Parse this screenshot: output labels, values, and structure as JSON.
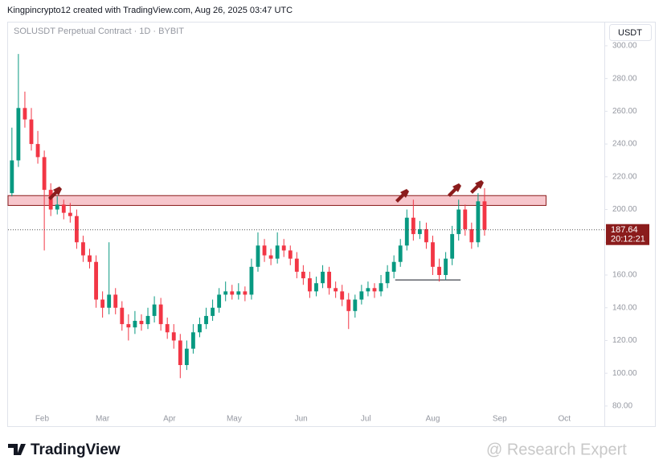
{
  "header": "Kingpincrypto12 created with TradingView.com, Aug 26, 2025 03:47 UTC",
  "chart_data": {
    "type": "candlestick",
    "title": "SOLUSDT Perpetual Contract · 1D · BYBIT",
    "currency": "USDT",
    "open": [
      210,
      230,
      262,
      255,
      240,
      232,
      212,
      200,
      203,
      198,
      196,
      180,
      172,
      168,
      145,
      140,
      148,
      140,
      130,
      128,
      132,
      130,
      135,
      142,
      130,
      125,
      120,
      105,
      115,
      125,
      130,
      135,
      140,
      148,
      150,
      148,
      150,
      148,
      165,
      178,
      172,
      170,
      178,
      175,
      170,
      162,
      158,
      150,
      155,
      162,
      152,
      150,
      145,
      138,
      145,
      150,
      152,
      150,
      155,
      162,
      168,
      178,
      195,
      185,
      188,
      180,
      165,
      160,
      170,
      185,
      200,
      188,
      180,
      205
    ],
    "high": [
      250,
      295,
      272,
      262,
      248,
      236,
      216,
      208,
      206,
      204,
      200,
      184,
      176,
      172,
      150,
      180,
      152,
      144,
      136,
      138,
      136,
      140,
      147,
      146,
      134,
      130,
      124,
      120,
      130,
      134,
      140,
      145,
      152,
      156,
      154,
      155,
      153,
      170,
      186,
      182,
      176,
      186,
      182,
      178,
      174,
      166,
      162,
      159,
      166,
      165,
      156,
      154,
      149,
      148,
      154,
      156,
      155,
      160,
      166,
      172,
      182,
      200,
      206,
      193,
      192,
      184,
      170,
      174,
      190,
      206,
      203,
      192,
      210,
      213
    ],
    "low": [
      208,
      226,
      250,
      236,
      228,
      175,
      196,
      197,
      194,
      192,
      176,
      168,
      164,
      140,
      134,
      136,
      136,
      126,
      120,
      124,
      126,
      127,
      131,
      126,
      121,
      115,
      97,
      102,
      112,
      122,
      127,
      132,
      137,
      144,
      145,
      145,
      144,
      145,
      162,
      168,
      166,
      167,
      171,
      166,
      158,
      154,
      146,
      147,
      152,
      148,
      146,
      141,
      127,
      134,
      142,
      147,
      146,
      147,
      152,
      158,
      165,
      175,
      181,
      182,
      176,
      160,
      156,
      157,
      166,
      181,
      184,
      176,
      177,
      184
    ],
    "close": [
      230,
      262,
      255,
      240,
      232,
      212,
      200,
      203,
      198,
      196,
      180,
      172,
      168,
      145,
      140,
      148,
      140,
      130,
      128,
      132,
      130,
      135,
      142,
      130,
      125,
      120,
      105,
      115,
      125,
      130,
      135,
      140,
      148,
      150,
      148,
      150,
      148,
      165,
      178,
      172,
      170,
      178,
      175,
      170,
      162,
      158,
      150,
      155,
      162,
      152,
      150,
      145,
      138,
      145,
      150,
      152,
      150,
      155,
      162,
      168,
      178,
      195,
      185,
      188,
      180,
      165,
      160,
      170,
      185,
      200,
      188,
      180,
      205,
      187.64
    ],
    "up_color": "#089981",
    "down_color": "#f23645",
    "countdown": "20:12:21",
    "resistance_zone": {
      "y": [
        202.5,
        208.5
      ],
      "x": [
        -0.6,
        82.5
      ],
      "color": "#f7c6cc"
    },
    "support_line": {
      "y": 157,
      "x": [
        59.2,
        69.3
      ]
    },
    "xlim": [
      -0.6,
      91.5
    ],
    "xticks": [
      {
        "value": 4.667,
        "label": "Feb"
      },
      {
        "value": 14,
        "label": "Mar"
      },
      {
        "value": 24.333,
        "label": "Apr"
      },
      {
        "value": 34.333,
        "label": "May"
      },
      {
        "value": 44.667,
        "label": "Jun"
      },
      {
        "value": 54.667,
        "label": "Jul"
      },
      {
        "value": 65,
        "label": "Aug"
      },
      {
        "value": 75.333,
        "label": "Sep"
      },
      {
        "value": 85.333,
        "label": "Oct"
      }
    ],
    "ylim": [
      77.5,
      303.4
    ],
    "yticks": [
      {
        "value": 80,
        "label": "80.00"
      },
      {
        "value": 100,
        "label": "100.00"
      },
      {
        "value": 120,
        "label": "120.00"
      },
      {
        "value": 140,
        "label": "140.00"
      },
      {
        "value": 160,
        "label": "160.00"
      },
      {
        "value": 180,
        "label": "180.00"
      },
      {
        "value": 200,
        "label": "200.00"
      },
      {
        "value": 220,
        "label": "220.00"
      },
      {
        "value": 240,
        "label": "240.00"
      },
      {
        "value": 260,
        "label": "260.00"
      },
      {
        "value": 280,
        "label": "280.00"
      },
      {
        "value": 300,
        "label": "300.00"
      }
    ]
  },
  "footer": {
    "logo": "TradingView",
    "watermark": "@ Research Expert"
  }
}
